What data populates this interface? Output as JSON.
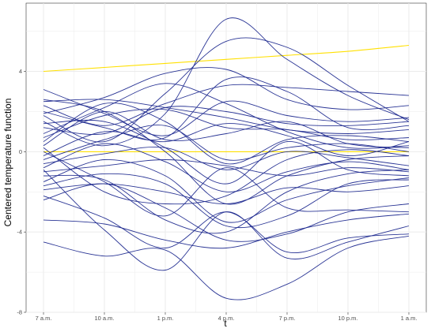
{
  "chart_data": {
    "type": "line",
    "title": "",
    "xlabel": "t",
    "ylabel": "Centered temperature function",
    "x_ticks": [
      "7 a.m.",
      "10 a.m.",
      "1 p.m.",
      "4 p.m.",
      "7 p.m.",
      "10 p.m.",
      "1 a.m."
    ],
    "y_ticks": [
      -8,
      -4,
      0,
      4
    ],
    "xlim": [
      "7 a.m.",
      "1 a.m."
    ],
    "ylim": [
      -8,
      7.4
    ],
    "grid": true,
    "background": "#ffffff",
    "grid_color": "#ebebeb",
    "series_color": "#1f2a8f",
    "reference_color": "#ffe000",
    "x": [
      "7 a.m.",
      "10 a.m.",
      "1 p.m.",
      "4 p.m.",
      "7 p.m.",
      "10 p.m.",
      "1 a.m."
    ],
    "series": [
      {
        "values": [
          2.5,
          2.6,
          2.2,
          1.7,
          1.1,
          0.9,
          1.1
        ]
      },
      {
        "values": [
          2.3,
          1.3,
          2.4,
          3.3,
          3.2,
          3.0,
          2.8
        ]
      },
      {
        "values": [
          3.1,
          1.9,
          0.8,
          2.5,
          1.8,
          1.5,
          1.7
        ]
      },
      {
        "values": [
          1.8,
          0.5,
          2.9,
          5.5,
          5.2,
          3.3,
          1.5
        ]
      },
      {
        "values": [
          1.5,
          0.3,
          1.9,
          6.6,
          4.6,
          2.8,
          1.6
        ]
      },
      {
        "values": [
          2.0,
          1.2,
          0.7,
          3.6,
          3.0,
          1.2,
          1.3
        ]
      },
      {
        "values": [
          1.2,
          0.9,
          2.2,
          2.0,
          1.4,
          1.3,
          1.5
        ]
      },
      {
        "values": [
          0.7,
          1.8,
          2.1,
          1.2,
          1.1,
          0.6,
          0.7
        ]
      },
      {
        "values": [
          0.3,
          2.0,
          0.6,
          0.9,
          1.5,
          0.4,
          0.2
        ]
      },
      {
        "values": [
          0.5,
          2.4,
          1.5,
          -0.6,
          0.6,
          0.8,
          0.5
        ]
      },
      {
        "values": [
          -0.2,
          1.0,
          0.5,
          1.4,
          0.8,
          -0.2,
          0.5
        ]
      },
      {
        "values": [
          -0.4,
          0.6,
          1.3,
          -0.4,
          0.2,
          0.4,
          0.0
        ]
      },
      {
        "values": [
          -0.6,
          -0.1,
          0.2,
          -0.9,
          0.0,
          -0.3,
          -0.7
        ]
      },
      {
        "values": [
          -0.8,
          0.4,
          -0.5,
          -2.0,
          -1.0,
          -0.5,
          -0.9
        ]
      },
      {
        "values": [
          -1.0,
          -0.7,
          -0.4,
          -0.7,
          -1.2,
          -0.8,
          -1.0
        ]
      },
      {
        "values": [
          -1.5,
          -0.4,
          -1.2,
          -3.5,
          -2.4,
          -1.7,
          -1.3
        ]
      },
      {
        "values": [
          -1.7,
          -1.1,
          -1.6,
          -3.7,
          -3.2,
          -1.6,
          -1.4
        ]
      },
      {
        "values": [
          -1.9,
          -1.6,
          -2.0,
          -2.6,
          -1.8,
          -2.0,
          -1.7
        ]
      },
      {
        "values": [
          -2.4,
          -1.6,
          -2.8,
          -4.4,
          -4.1,
          -3.0,
          -2.6
        ]
      },
      {
        "values": [
          -3.4,
          -3.6,
          -4.4,
          -4.8,
          -4.0,
          -3.4,
          -3.1
        ]
      },
      {
        "values": [
          -4.5,
          -5.2,
          -4.9,
          -7.3,
          -6.6,
          -4.8,
          -4.2
        ]
      },
      {
        "values": [
          -0.9,
          -3.9,
          -5.9,
          -3.0,
          -5.3,
          -4.5,
          -3.7
        ]
      },
      {
        "values": [
          0.2,
          -2.0,
          -2.6,
          -2.2,
          -0.4,
          0.1,
          -0.2
        ]
      },
      {
        "values": [
          2.6,
          2.0,
          0.0,
          -2.6,
          -1.2,
          -0.4,
          -0.2
        ]
      },
      {
        "values": [
          1.4,
          1.5,
          0.2,
          -1.6,
          0.5,
          -0.9,
          -1.2
        ]
      },
      {
        "values": [
          -1.2,
          -1.4,
          -3.4,
          -4.0,
          -2.0,
          -1.1,
          -0.9
        ]
      },
      {
        "values": [
          0.9,
          2.2,
          3.4,
          2.4,
          1.0,
          0.2,
          0.3
        ]
      },
      {
        "values": [
          1.9,
          2.7,
          3.9,
          4.1,
          2.6,
          2.1,
          2.3
        ]
      },
      {
        "values": [
          0.0,
          -1.5,
          -3.2,
          -0.8,
          -2.8,
          -2.9,
          -3.0
        ]
      },
      {
        "values": [
          -2.2,
          -3.3,
          -4.8,
          -3.0,
          -5.0,
          -4.3,
          -4.1
        ]
      }
    ],
    "reference_lines": [
      {
        "values": [
          4.0,
          4.2,
          4.4,
          4.6,
          4.8,
          5.0,
          5.3
        ]
      },
      {
        "values": [
          0.0,
          0.0,
          0.0,
          0.0,
          0.0,
          0.0,
          0.0
        ]
      }
    ]
  }
}
